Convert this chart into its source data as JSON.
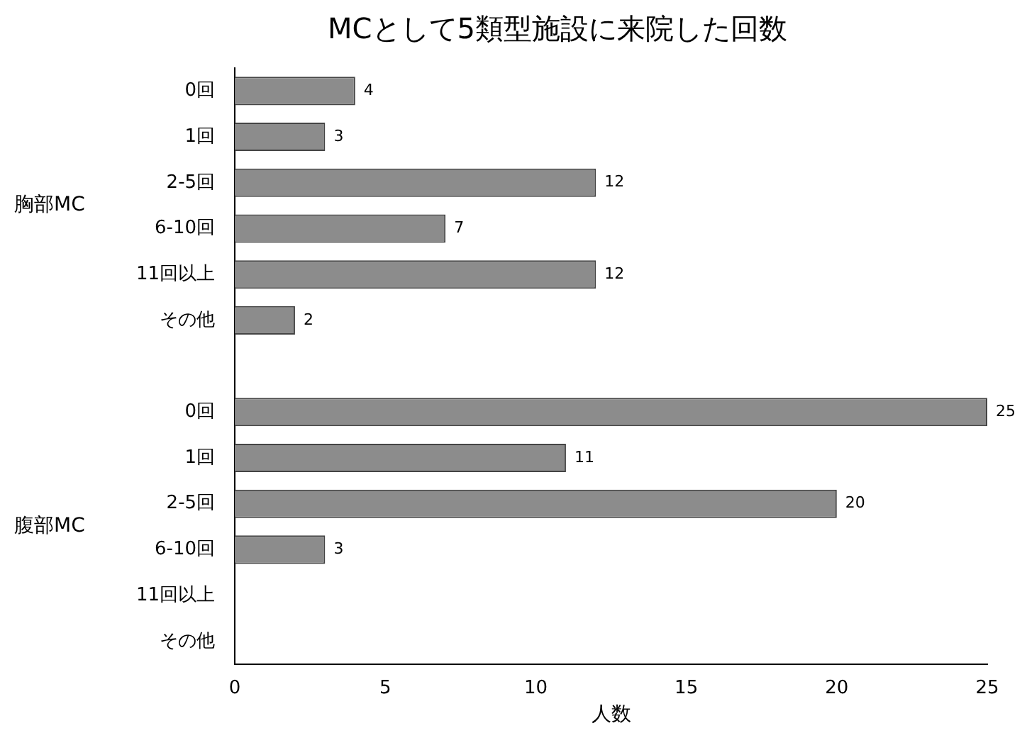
{
  "chart_data": {
    "type": "bar",
    "orientation": "horizontal",
    "title": "MCとして5類型施設に来院した回数",
    "xlabel": "人数",
    "categories": [
      "0回",
      "1回",
      "2-5回",
      "6-10回",
      "11回以上",
      "その他",
      null,
      "0回",
      "1回",
      "2-5回",
      "6-10回",
      "11回以上",
      "その他"
    ],
    "values": [
      4,
      3,
      12,
      7,
      12,
      2,
      null,
      25,
      11,
      20,
      3,
      null,
      null
    ],
    "color": "#8c8c8c",
    "xlim": [
      0,
      25
    ],
    "xticks": [
      0,
      5,
      10,
      15,
      20,
      25
    ],
    "grid": false,
    "legend": false,
    "data_labels": true,
    "annotations": [
      "胸部MC",
      "腹部MC"
    ]
  }
}
